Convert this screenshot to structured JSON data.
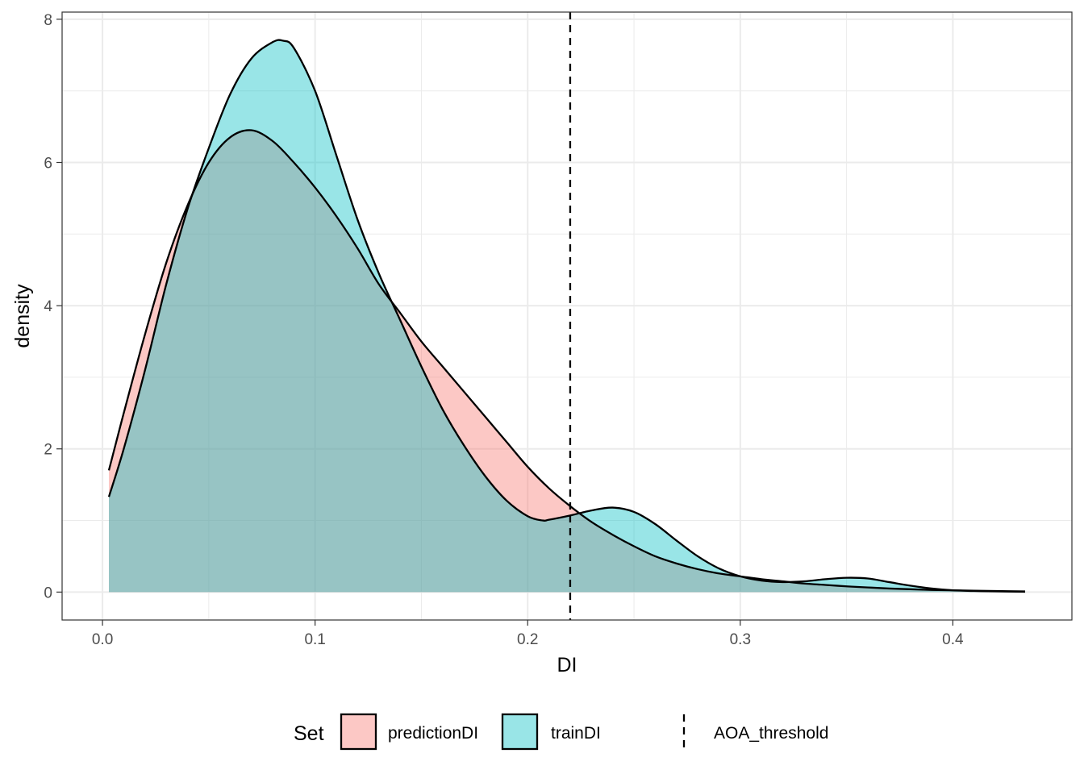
{
  "chart_data": {
    "type": "area",
    "xlabel": "DI",
    "ylabel": "density",
    "xlim": [
      -0.019,
      0.456
    ],
    "ylim": [
      -0.39,
      8.1
    ],
    "x_ticks": [
      0.0,
      0.1,
      0.2,
      0.3,
      0.4
    ],
    "x_tick_labels": [
      "0.0",
      "0.1",
      "0.2",
      "0.3",
      "0.4"
    ],
    "y_ticks": [
      0,
      2,
      4,
      6,
      8
    ],
    "y_tick_labels": [
      "0",
      "2",
      "4",
      "6",
      "8"
    ],
    "grid": true,
    "legend": {
      "position": "bottom",
      "title": "Set",
      "items": [
        {
          "label": "predictionDI",
          "kind": "fill",
          "color": "#F8766D"
        },
        {
          "label": "trainDI",
          "kind": "fill",
          "color": "#00BFC4"
        },
        {
          "label": "AOA_threshold",
          "kind": "dashed-line",
          "color": "#000000"
        }
      ]
    },
    "fill_opacity": 0.4,
    "series": [
      {
        "name": "predictionDI",
        "color": "#F8766D",
        "x": [
          0.003,
          0.01,
          0.02,
          0.03,
          0.04,
          0.05,
          0.06,
          0.07,
          0.08,
          0.09,
          0.1,
          0.11,
          0.12,
          0.13,
          0.14,
          0.15,
          0.16,
          0.17,
          0.18,
          0.19,
          0.2,
          0.21,
          0.22,
          0.23,
          0.24,
          0.25,
          0.26,
          0.27,
          0.28,
          0.29,
          0.3,
          0.31,
          0.32,
          0.33,
          0.34,
          0.35,
          0.36,
          0.37,
          0.38,
          0.39,
          0.4,
          0.41,
          0.42,
          0.434
        ],
        "values": [
          1.7,
          2.5,
          3.6,
          4.6,
          5.4,
          6.0,
          6.35,
          6.45,
          6.3,
          6.0,
          5.65,
          5.25,
          4.8,
          4.3,
          3.9,
          3.5,
          3.15,
          2.8,
          2.45,
          2.1,
          1.75,
          1.45,
          1.2,
          0.98,
          0.8,
          0.64,
          0.5,
          0.4,
          0.32,
          0.26,
          0.22,
          0.18,
          0.15,
          0.12,
          0.1,
          0.08,
          0.065,
          0.05,
          0.04,
          0.03,
          0.025,
          0.02,
          0.015,
          0.01
        ]
      },
      {
        "name": "trainDI",
        "color": "#00BFC4",
        "x": [
          0.003,
          0.01,
          0.02,
          0.03,
          0.04,
          0.05,
          0.06,
          0.07,
          0.08,
          0.085,
          0.09,
          0.1,
          0.11,
          0.12,
          0.13,
          0.14,
          0.15,
          0.16,
          0.17,
          0.18,
          0.19,
          0.2,
          0.207,
          0.21,
          0.22,
          0.23,
          0.24,
          0.25,
          0.26,
          0.27,
          0.28,
          0.29,
          0.3,
          0.31,
          0.32,
          0.33,
          0.34,
          0.35,
          0.36,
          0.37,
          0.38,
          0.39,
          0.4,
          0.41,
          0.42,
          0.434
        ],
        "values": [
          1.33,
          2.0,
          3.1,
          4.3,
          5.35,
          6.2,
          6.95,
          7.45,
          7.68,
          7.7,
          7.6,
          7.0,
          6.1,
          5.2,
          4.45,
          3.8,
          3.15,
          2.55,
          2.05,
          1.62,
          1.28,
          1.06,
          1.0,
          1.01,
          1.07,
          1.14,
          1.18,
          1.12,
          0.95,
          0.72,
          0.5,
          0.33,
          0.22,
          0.16,
          0.14,
          0.15,
          0.18,
          0.2,
          0.19,
          0.14,
          0.09,
          0.05,
          0.025,
          0.015,
          0.01,
          0.005
        ]
      }
    ],
    "vline": {
      "name": "AOA_threshold",
      "x": 0.22,
      "style": "dashed"
    }
  }
}
